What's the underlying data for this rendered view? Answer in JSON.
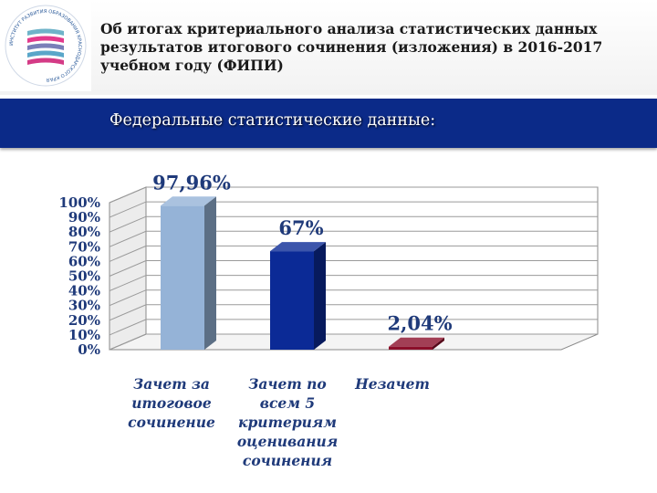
{
  "header": {
    "title": "Об итогах критериального анализа статистических данных результатов итогового сочинения (изложения) в 2016-2017 учебном году (ФИПИ)"
  },
  "banner": {
    "text": "Федеральные статистические данные:"
  },
  "logo": {
    "ring_text": "ИНСТИТУТ РАЗВИТИЯ ОБРАЗОВАНИЯ КРАСНОДАРСКОГО КРАЯ",
    "colors": [
      "#6fb3c9",
      "#e23a8c",
      "#7a7fb8",
      "#5aa6c9",
      "#d43b86"
    ]
  },
  "chart_data": {
    "type": "bar",
    "categories": [
      [
        "Зачет за",
        "итоговое",
        "сочинение"
      ],
      [
        "Зачет по",
        "всем 5",
        "критериям",
        "оценивания",
        "сочинения"
      ],
      [
        "Незачет"
      ]
    ],
    "values": [
      97.96,
      67,
      2.04
    ],
    "data_labels": [
      "97,96%",
      "67%",
      "2,04%"
    ],
    "colors": [
      "#95b3d7",
      "#0b2a96",
      "#8b0f2a"
    ],
    "yticks": [
      "0%",
      "10%",
      "20%",
      "30%",
      "40%",
      "50%",
      "60%",
      "70%",
      "80%",
      "90%",
      "100%"
    ],
    "ylim": [
      0,
      100
    ],
    "grid": true,
    "style": "3d"
  }
}
